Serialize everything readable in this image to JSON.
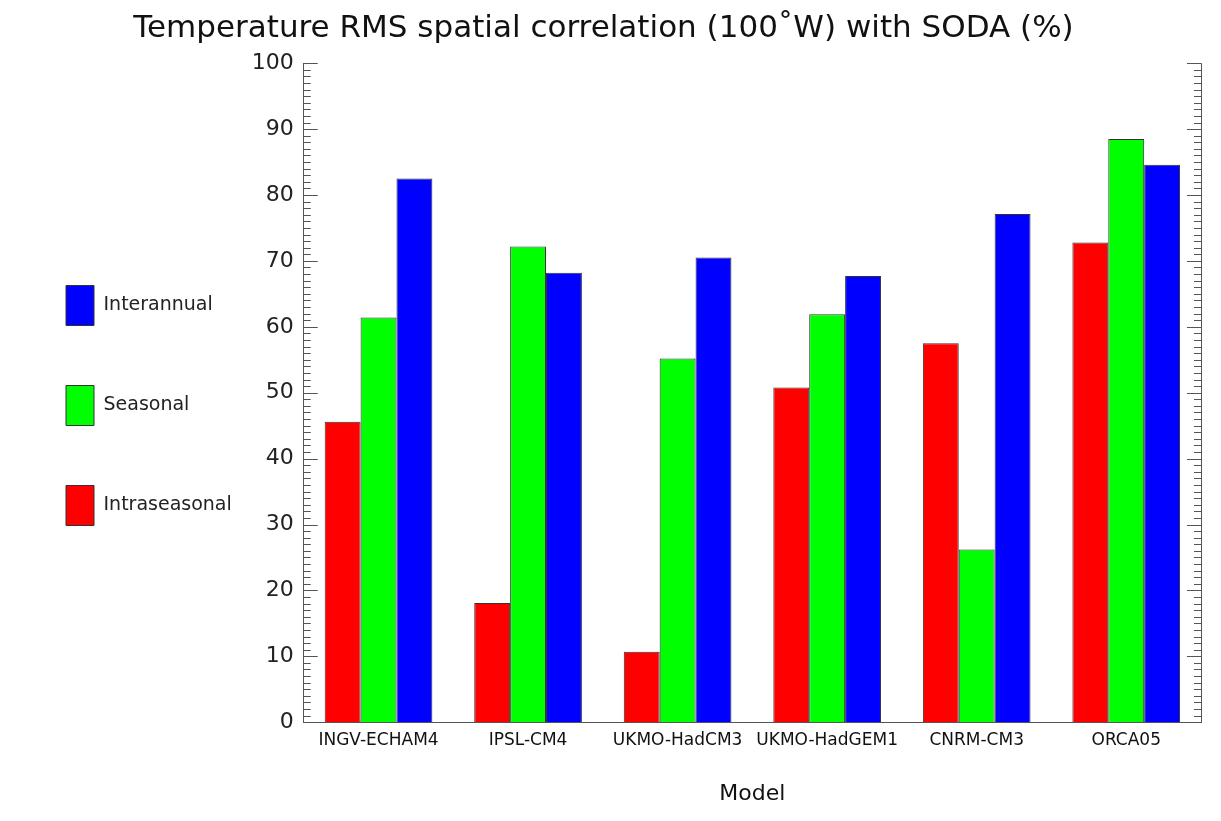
{
  "chart_data": {
    "type": "bar",
    "title": "Temperature RMS spatial correlation (100˚W) with SODA (%)",
    "xlabel": "Model",
    "categories": [
      "INGV-ECHAM4",
      "IPSL-CM4",
      "UKMO-HadCM3",
      "UKMO-HadGEM1",
      "CNRM-CM3",
      "ORCA05"
    ],
    "series": [
      {
        "name": "Intraseasonal",
        "color": "#ff0000",
        "values": [
          45.6,
          18.1,
          10.7,
          50.8,
          57.5,
          72.8
        ]
      },
      {
        "name": "Seasonal",
        "color": "#00ff00",
        "values": [
          61.4,
          72.2,
          55.2,
          61.9,
          26.2,
          88.5
        ]
      },
      {
        "name": "Interannual",
        "color": "#0000ff",
        "values": [
          82.5,
          68.2,
          70.5,
          67.7,
          77.1,
          84.6
        ]
      }
    ],
    "ylim": [
      0,
      100
    ],
    "yticks": [
      0,
      10,
      20,
      30,
      40,
      50,
      60,
      70,
      80,
      90,
      100
    ],
    "grid": false,
    "legend": "left"
  }
}
